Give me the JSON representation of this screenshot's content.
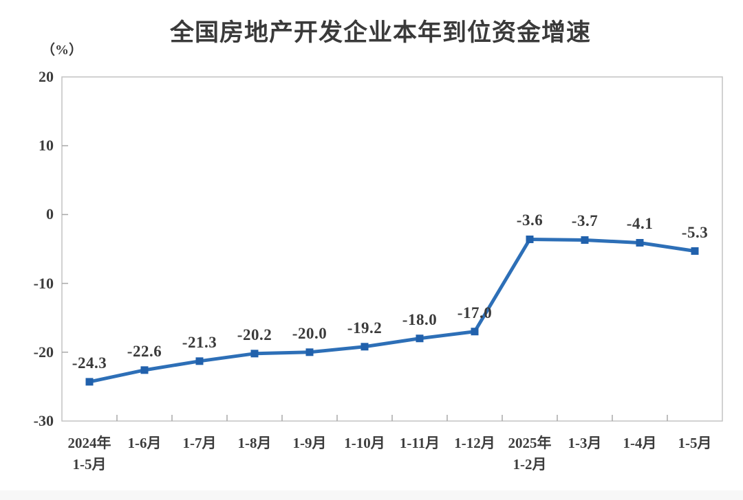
{
  "chart_data": {
    "type": "line",
    "title": "全国房地产开发企业本年到位资金增速",
    "unit_label": "（%）",
    "categories": [
      "2024年\n1-5月",
      "1-6月",
      "1-7月",
      "1-8月",
      "1-9月",
      "1-10月",
      "1-11月",
      "1-12月",
      "2025年\n1-2月",
      "1-3月",
      "1-4月",
      "1-5月"
    ],
    "values": [
      -24.3,
      -22.6,
      -21.3,
      -20.2,
      -20.0,
      -19.2,
      -18.0,
      -17.0,
      -3.6,
      -3.7,
      -4.1,
      -5.3
    ],
    "data_labels": [
      "-24.3",
      "-22.6",
      "-21.3",
      "-20.2",
      "-20.0",
      "-19.2",
      "-18.0",
      "-17.0",
      "-3.6",
      "-3.7",
      "-4.1",
      "-5.3"
    ],
    "xlabel": "",
    "ylabel": "（%）",
    "ylim": [
      -30,
      20
    ],
    "yticks": [
      20,
      10,
      0,
      -10,
      -20,
      -30
    ],
    "grid": false,
    "legend_position": "none",
    "marker": "square",
    "colors": {
      "line": "#2d6fb7",
      "marker": "#2161ac",
      "axis_border": "#c2c2c2",
      "tick": "#a8a8a8",
      "text": "#3c3c3c"
    }
  }
}
